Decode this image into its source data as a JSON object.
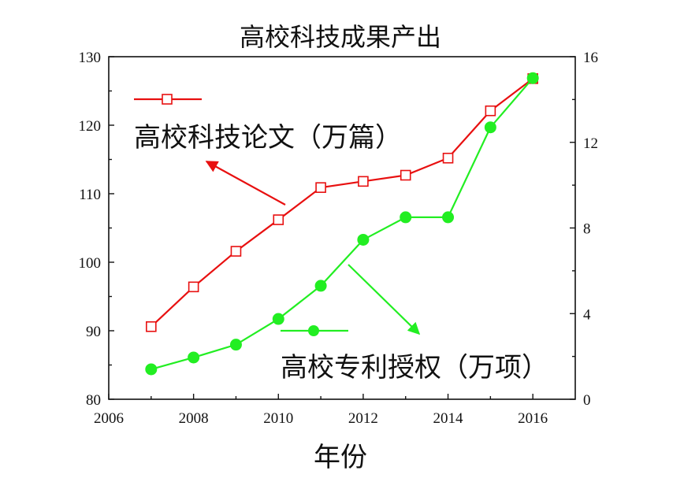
{
  "chart_data": {
    "type": "line",
    "title": "高校科技成果产出",
    "xlabel": "年份",
    "x": [
      2007,
      2008,
      2009,
      2010,
      2011,
      2012,
      2013,
      2014,
      2015,
      2016
    ],
    "xlim": [
      2006,
      2017
    ],
    "x_ticks": [
      "2006",
      "2008",
      "2010",
      "2012",
      "2014",
      "2016"
    ],
    "y_left_lim": [
      80,
      130
    ],
    "y_left_ticks": [
      "80",
      "90",
      "100",
      "110",
      "120",
      "130"
    ],
    "y_right_lim": [
      0,
      16
    ],
    "y_right_ticks": [
      "0",
      "4",
      "8",
      "12",
      "16"
    ],
    "grid": false,
    "series": [
      {
        "name": "高校科技论文（万篇）",
        "axis": "left",
        "color": "#e81010",
        "marker": "open-square",
        "values": [
          90.6,
          96.4,
          101.6,
          106.2,
          110.9,
          111.8,
          112.7,
          115.2,
          122.1,
          126.8
        ]
      },
      {
        "name": "高校专利授权（万项）",
        "axis": "right",
        "color": "#22ee22",
        "marker": "filled-circle",
        "values": [
          1.4,
          1.95,
          2.55,
          3.75,
          5.3,
          7.45,
          8.5,
          8.5,
          12.7,
          15.0
        ]
      }
    ]
  }
}
